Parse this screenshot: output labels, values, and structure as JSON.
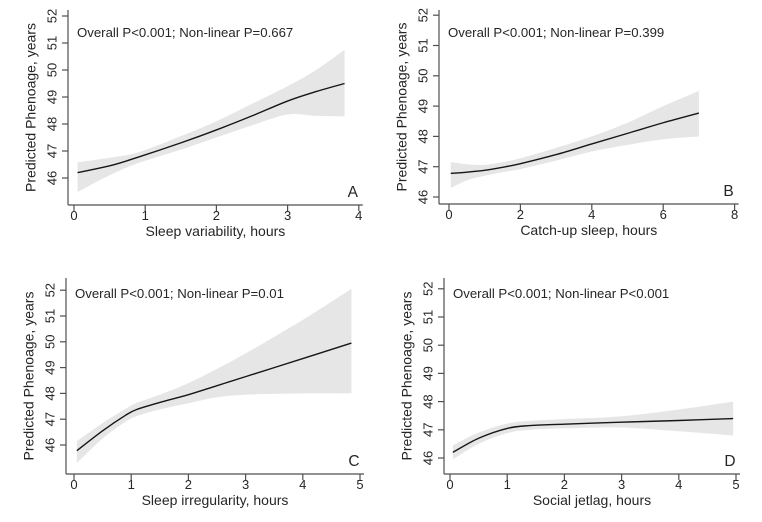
{
  "colors": {
    "line": "#161616",
    "band": "#e6e6e6",
    "axis": "#4f4f4f",
    "text": "#262626",
    "background": "#ffffff"
  },
  "chart_data": [
    {
      "type": "line",
      "letter": "A",
      "annotation": "Overall P<0.001; Non-linear P=0.667",
      "xlabel": "Sleep variability, hours",
      "ylabel": "Predicted Phenoage, years",
      "xlim": [
        0,
        4
      ],
      "ylim": [
        46,
        52
      ],
      "xticks": [
        0,
        1,
        2,
        3,
        4
      ],
      "yticks": [
        46,
        47,
        48,
        49,
        50,
        51,
        52
      ],
      "grid": false,
      "legend": "none",
      "x": [
        0.05,
        0.5,
        0.9,
        1.5,
        2.0,
        2.5,
        3.0,
        3.4,
        3.8
      ],
      "line": [
        46.2,
        46.45,
        46.77,
        47.3,
        47.78,
        48.3,
        48.85,
        49.2,
        49.5
      ],
      "ci_lower": [
        45.48,
        46.1,
        46.55,
        47.05,
        47.5,
        47.95,
        48.35,
        48.3,
        48.28
      ],
      "ci_upper": [
        46.58,
        46.75,
        46.95,
        47.55,
        48.1,
        48.75,
        49.4,
        50.0,
        50.75
      ]
    },
    {
      "type": "line",
      "letter": "B",
      "annotation": "Overall P<0.001; Non-linear P=0.399",
      "xlabel": "Catch-up sleep, hours",
      "ylabel": "Predicted Phenoage, years",
      "xlim": [
        0,
        8
      ],
      "ylim": [
        46,
        52
      ],
      "xticks": [
        0,
        2,
        4,
        6,
        8
      ],
      "yticks": [
        46,
        47,
        48,
        49,
        50,
        51,
        52
      ],
      "grid": false,
      "legend": "none",
      "x": [
        0.05,
        0.5,
        1.0,
        1.5,
        2.0,
        3.0,
        4.0,
        5.0,
        6.0,
        7.0
      ],
      "line": [
        46.78,
        46.82,
        46.88,
        46.98,
        47.1,
        47.4,
        47.75,
        48.1,
        48.45,
        48.77
      ],
      "ci_lower": [
        46.3,
        46.55,
        46.7,
        46.82,
        46.92,
        47.2,
        47.5,
        47.72,
        47.9,
        48.0
      ],
      "ci_upper": [
        47.15,
        47.08,
        47.06,
        47.15,
        47.28,
        47.62,
        48.0,
        48.45,
        49.0,
        49.5
      ]
    },
    {
      "type": "line",
      "letter": "C",
      "annotation": "Overall P<0.001; Non-linear P=0.01",
      "xlabel": "Sleep irregularity, hours",
      "ylabel": "Predicted Phenoage, years",
      "xlim": [
        0,
        5
      ],
      "ylim": [
        46,
        52
      ],
      "xticks": [
        0,
        1,
        2,
        3,
        4,
        5
      ],
      "yticks": [
        46,
        47,
        48,
        49,
        50,
        51,
        52
      ],
      "grid": false,
      "legend": "none",
      "x": [
        0.05,
        0.5,
        0.9,
        1.1,
        1.5,
        2.0,
        2.5,
        3.0,
        4.0,
        4.85
      ],
      "line": [
        45.78,
        46.55,
        47.15,
        47.38,
        47.65,
        47.95,
        48.3,
        48.65,
        49.35,
        49.95
      ],
      "ci_lower": [
        45.3,
        46.25,
        46.9,
        47.12,
        47.38,
        47.62,
        47.85,
        47.95,
        48.0,
        48.0
      ],
      "ci_upper": [
        46.15,
        46.85,
        47.4,
        47.64,
        47.95,
        48.4,
        48.95,
        49.55,
        50.85,
        52.05
      ]
    },
    {
      "type": "line",
      "letter": "D",
      "annotation": "Overall P<0.001; Non-linear P<0.001",
      "xlabel": "Social jetlag, hours",
      "ylabel": "Predicted Phenoage, years",
      "xlim": [
        0,
        5
      ],
      "ylim": [
        46,
        52
      ],
      "xticks": [
        0,
        1,
        2,
        3,
        4,
        5
      ],
      "yticks": [
        46,
        47,
        48,
        49,
        50,
        51,
        52
      ],
      "grid": false,
      "legend": "none",
      "x": [
        0.05,
        0.5,
        1.0,
        1.4,
        2.0,
        3.0,
        4.0,
        4.95
      ],
      "line": [
        46.2,
        46.7,
        47.05,
        47.15,
        47.2,
        47.27,
        47.33,
        47.4
      ],
      "ci_lower": [
        45.95,
        46.5,
        46.88,
        47.0,
        47.05,
        47.08,
        46.95,
        46.8
      ],
      "ci_upper": [
        46.45,
        46.9,
        47.22,
        47.32,
        47.38,
        47.48,
        47.72,
        48.0
      ]
    }
  ]
}
